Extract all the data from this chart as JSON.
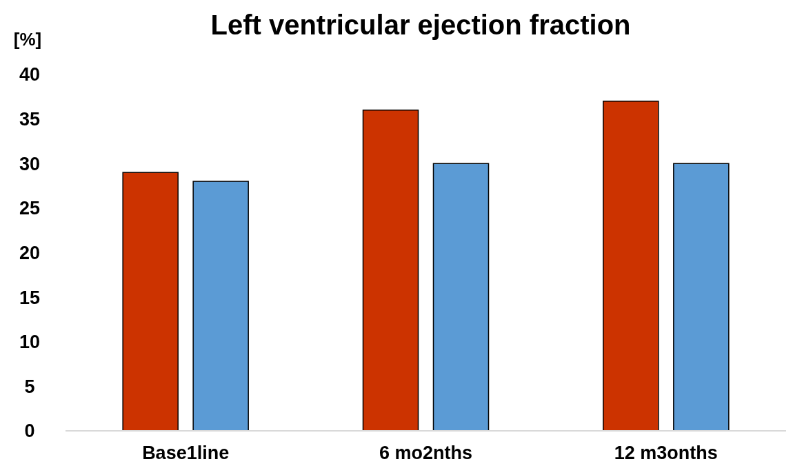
{
  "chart_data": {
    "type": "bar",
    "title": "Left ventricular ejection fraction",
    "ylabel": "[%]",
    "categories": [
      "Base1line",
      "6 mo2nths",
      "12 m3onths"
    ],
    "series": [
      {
        "color": "#cc3300",
        "values": [
          29,
          36,
          37
        ]
      },
      {
        "color": "#5b9bd5",
        "values": [
          28,
          30,
          30
        ]
      }
    ],
    "ylim": [
      0,
      40
    ],
    "yticks": [
      0,
      5,
      10,
      15,
      20,
      25,
      30,
      35,
      40
    ],
    "grid": false
  }
}
